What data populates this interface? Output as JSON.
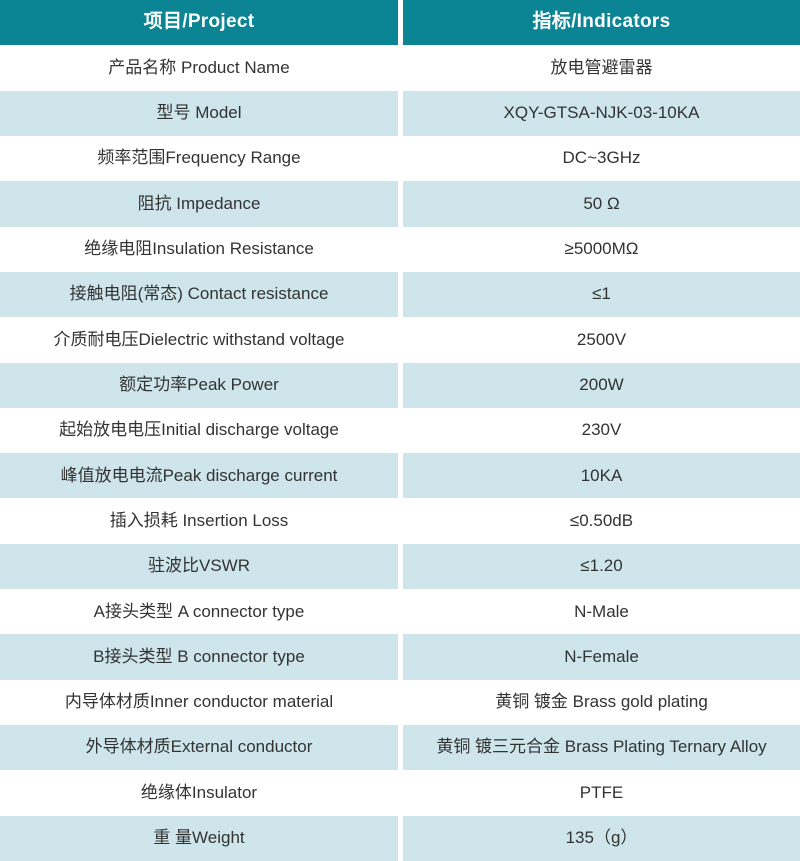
{
  "table": {
    "header": {
      "project": "项目/Project",
      "indicators": "指标/Indicators"
    },
    "rows": [
      {
        "project": "产品名称 Product Name",
        "indicator": "放电管避雷器"
      },
      {
        "project": "型号 Model",
        "indicator": "XQY-GTSA-NJK-03-10KA"
      },
      {
        "project": "频率范围Frequency Range",
        "indicator": "DC~3GHz"
      },
      {
        "project": "阻抗 Impedance",
        "indicator": "50 Ω"
      },
      {
        "project": "绝缘电阻Insulation Resistance",
        "indicator": "≥5000MΩ"
      },
      {
        "project": "接触电阻(常态) Contact resistance",
        "indicator": "≤1"
      },
      {
        "project": "介质耐电压Dielectric withstand voltage",
        "indicator": "2500V"
      },
      {
        "project": "额定功率Peak Power",
        "indicator": "200W"
      },
      {
        "project": "起始放电电压Initial discharge voltage",
        "indicator": "230V"
      },
      {
        "project": "峰值放电电流Peak discharge current",
        "indicator": "10KA"
      },
      {
        "project": "插入损耗 Insertion Loss",
        "indicator": "≤0.50dB"
      },
      {
        "project": "驻波比VSWR",
        "indicator": "≤1.20"
      },
      {
        "project": "A接头类型 A connector type",
        "indicator": "N-Male"
      },
      {
        "project": "B接头类型 B connector type",
        "indicator": "N-Female"
      },
      {
        "project": "内导体材质Inner conductor material",
        "indicator": "黄铜 镀金 Brass gold plating"
      },
      {
        "project": "外导体材质External conductor",
        "indicator": "黄铜 镀三元合金 Brass Plating Ternary Alloy"
      },
      {
        "project": "绝缘体Insulator",
        "indicator": "PTFE"
      },
      {
        "project": "重 量Weight",
        "indicator": "135（g）"
      }
    ],
    "colors": {
      "header_bg": "#0b8493",
      "header_text": "#ffffff",
      "row_bg": "#ffffff",
      "row_alt_bg": "#cde5eb",
      "body_text": "#333333"
    }
  }
}
